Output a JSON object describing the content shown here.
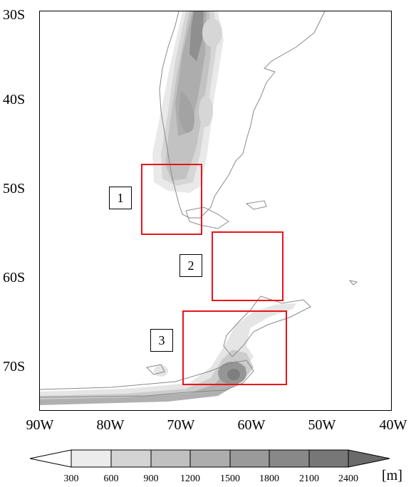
{
  "latitude_labels": [
    "30S",
    "40S",
    "50S",
    "60S",
    "70S"
  ],
  "longitude_labels": [
    "90W",
    "80W",
    "70W",
    "60W",
    "50W",
    "40W"
  ],
  "region_labels": [
    "1",
    "2",
    "3"
  ],
  "colorbar": {
    "levels": [
      "300",
      "600",
      "900",
      "1200",
      "1500",
      "1800",
      "2100",
      "2400"
    ],
    "unit": "[m]",
    "colors": [
      "#ececec",
      "#d4d4d4",
      "#c0c0c0",
      "#adadad",
      "#9a9a9a",
      "#888888",
      "#777777"
    ],
    "end_colors": {
      "low": "#ffffff",
      "high": "#6a6a6a"
    }
  },
  "styles": {
    "box_color": "#e8141c",
    "coast_color": "#8a8a8a"
  }
}
